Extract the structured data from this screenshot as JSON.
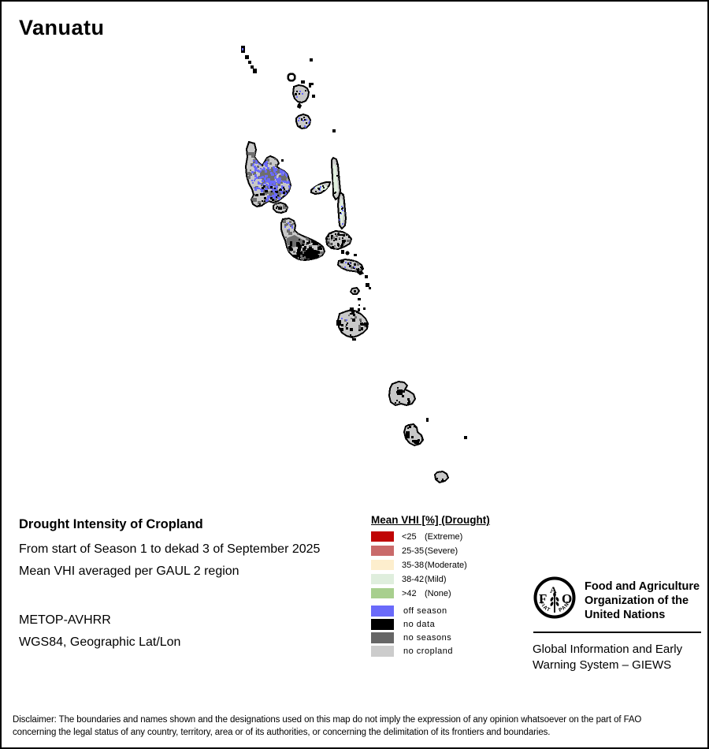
{
  "title": "Vanuatu",
  "info": {
    "heading": "Drought Intensity of Cropland",
    "period_line": "From start of Season 1 to dekad 3 of September 2025",
    "method_line": "Mean VHI averaged per GAUL 2 region",
    "sensor": "METOP-AVHRR",
    "projection": "WGS84, Geographic Lat/Lon"
  },
  "legend": {
    "title": "Mean VHI [%] (Drought)",
    "drought_classes": [
      {
        "value": "<25",
        "qualifier": "(Extreme)",
        "color": "#c00505"
      },
      {
        "value": "25-35",
        "qualifier": "(Severe)",
        "color": "#c96a6a"
      },
      {
        "value": "35-38",
        "qualifier": "(Moderate)",
        "color": "#fdeecd"
      },
      {
        "value": "38-42",
        "qualifier": "(Mild)",
        "color": "#dfeedd"
      },
      {
        "value": ">42",
        "qualifier": "(None)",
        "color": "#a8cf8e"
      }
    ],
    "other_classes": [
      {
        "label": "off season",
        "color": "#6a6afa"
      },
      {
        "label": "no data",
        "color": "#000000"
      },
      {
        "label": "no seasons",
        "color": "#666666"
      },
      {
        "label": "no cropland",
        "color": "#cccccc"
      }
    ]
  },
  "map": {
    "colors": {
      "no_cropland": "#c8c8c8",
      "no_seasons": "#6e6e6e",
      "no_data": "#000000",
      "off_season": "#6a6afa",
      "mild": "#dfeedd"
    }
  },
  "footer": {
    "fao_letters": [
      "F",
      "A",
      "O"
    ],
    "fao_motto_fiat": "FIAT",
    "fao_motto_panis": "PANIS",
    "fao_name_lines": [
      "Food and Agriculture",
      "Organization of the",
      "United Nations"
    ],
    "giews_lines": [
      "Global Information and Early",
      "Warning System – GIEWS"
    ],
    "disclaimer_line1": "Disclaimer: The boundaries and names shown and the designations used on this map do not imply the expression of any opinion whatsoever on the part of FAO",
    "disclaimer_line2": "concerning the legal status of any country, territory, area or of its authorities, or concerning the delimitation of its frontiers and boundaries."
  }
}
